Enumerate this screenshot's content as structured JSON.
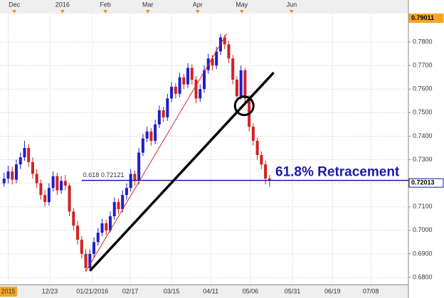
{
  "chart_data": {
    "type": "candlestick",
    "xlim": [
      0,
      100
    ],
    "ylim": [
      0.677,
      0.7918
    ],
    "grid": true,
    "yticks": [
      {
        "value": 0.68,
        "label": "0.6800"
      },
      {
        "value": 0.69,
        "label": "0.6900"
      },
      {
        "value": 0.7,
        "label": "0.7000"
      },
      {
        "value": 0.71,
        "label": "0.7100"
      },
      {
        "value": 0.72,
        "label": "0.7200"
      },
      {
        "value": 0.73,
        "label": "0.7300"
      },
      {
        "value": 0.74,
        "label": "0.7400"
      },
      {
        "value": 0.75,
        "label": "0.7500"
      },
      {
        "value": 0.76,
        "label": "0.7600"
      },
      {
        "value": 0.77,
        "label": "0.7700"
      },
      {
        "value": 0.78,
        "label": "0.7800"
      }
    ],
    "xticks": [
      {
        "value": 2,
        "label": "2015"
      },
      {
        "value": 12.2,
        "label": "12/23"
      },
      {
        "value": 22.6,
        "label": "01/21/2016"
      },
      {
        "value": 31.9,
        "label": "02/17"
      },
      {
        "value": 42,
        "label": "03/15"
      },
      {
        "value": 51.6,
        "label": "04/11"
      },
      {
        "value": 61.3,
        "label": "05/06"
      },
      {
        "value": 71.6,
        "label": "05/31"
      },
      {
        "value": 81.4,
        "label": "06/19"
      },
      {
        "value": 90.8,
        "label": "07/08"
      }
    ],
    "top_xticks": [
      {
        "value": 3.5,
        "label": "Dec"
      },
      {
        "value": 15.3,
        "label": "2016"
      },
      {
        "value": 25.8,
        "label": "Feb"
      },
      {
        "value": 36.2,
        "label": "Mar"
      },
      {
        "value": 48.4,
        "label": "Apr"
      },
      {
        "value": 59.2,
        "label": "May"
      },
      {
        "value": 71.4,
        "label": "Jun"
      }
    ],
    "up_color": "#1f1fc8",
    "down_color": "#d42020",
    "x": [
      1,
      2,
      3,
      4,
      5,
      6,
      7,
      8,
      9,
      10,
      11,
      12,
      13,
      14,
      15,
      16,
      17,
      18,
      19,
      20,
      21,
      22,
      23,
      24,
      25,
      26,
      27,
      28,
      29,
      30,
      31,
      32,
      33,
      34,
      35,
      36,
      37,
      38,
      39,
      40,
      41,
      42,
      43,
      44,
      45,
      46,
      47,
      48,
      49,
      50,
      51,
      52,
      53,
      54,
      55,
      56,
      57,
      58,
      59,
      60,
      61,
      62,
      63,
      64,
      65,
      66
    ],
    "open": [
      0.72,
      0.722,
      0.725,
      0.7215,
      0.728,
      0.731,
      0.735,
      0.729,
      0.724,
      0.72,
      0.715,
      0.712,
      0.718,
      0.723,
      0.717,
      0.721,
      0.719,
      0.708,
      0.702,
      0.696,
      0.69,
      0.684,
      0.69,
      0.695,
      0.699,
      0.703,
      0.7,
      0.706,
      0.712,
      0.709,
      0.715,
      0.718,
      0.724,
      0.721,
      0.733,
      0.739,
      0.742,
      0.738,
      0.745,
      0.751,
      0.748,
      0.756,
      0.761,
      0.758,
      0.765,
      0.762,
      0.769,
      0.764,
      0.756,
      0.76,
      0.768,
      0.773,
      0.77,
      0.776,
      0.782,
      0.779,
      0.773,
      0.764,
      0.757,
      0.768,
      0.756,
      0.744,
      0.738,
      0.732,
      0.728,
      0.722
    ],
    "high": [
      0.7245,
      0.7275,
      0.727,
      0.73,
      0.733,
      0.738,
      0.7365,
      0.731,
      0.726,
      0.7215,
      0.717,
      0.72,
      0.725,
      0.7245,
      0.723,
      0.7235,
      0.72,
      0.7095,
      0.704,
      0.6975,
      0.692,
      0.692,
      0.697,
      0.701,
      0.705,
      0.7045,
      0.708,
      0.714,
      0.7135,
      0.717,
      0.72,
      0.726,
      0.7255,
      0.735,
      0.741,
      0.744,
      0.7435,
      0.747,
      0.753,
      0.7525,
      0.758,
      0.763,
      0.7625,
      0.767,
      0.7665,
      0.771,
      0.7705,
      0.7655,
      0.762,
      0.77,
      0.775,
      0.7745,
      0.778,
      0.7835,
      0.783,
      0.7805,
      0.7745,
      0.7655,
      0.77,
      0.769,
      0.7575,
      0.7455,
      0.7395,
      0.7335,
      0.7295,
      0.7235
    ],
    "low": [
      0.7185,
      0.72,
      0.7195,
      0.72,
      0.726,
      0.7295,
      0.727,
      0.722,
      0.718,
      0.713,
      0.71,
      0.7105,
      0.7165,
      0.715,
      0.7155,
      0.717,
      0.706,
      0.7,
      0.694,
      0.688,
      0.6825,
      0.683,
      0.6885,
      0.6935,
      0.6975,
      0.698,
      0.699,
      0.7045,
      0.707,
      0.7075,
      0.713,
      0.7165,
      0.719,
      0.7195,
      0.7315,
      0.7375,
      0.736,
      0.7365,
      0.7435,
      0.746,
      0.7465,
      0.7545,
      0.756,
      0.7565,
      0.76,
      0.7605,
      0.762,
      0.754,
      0.7545,
      0.7585,
      0.7665,
      0.768,
      0.7685,
      0.7745,
      0.777,
      0.771,
      0.762,
      0.755,
      0.7555,
      0.754,
      0.742,
      0.736,
      0.73,
      0.726,
      0.7195,
      0.7185
    ],
    "close": [
      0.722,
      0.725,
      0.7215,
      0.728,
      0.731,
      0.735,
      0.729,
      0.724,
      0.72,
      0.715,
      0.712,
      0.718,
      0.723,
      0.717,
      0.721,
      0.719,
      0.708,
      0.702,
      0.696,
      0.69,
      0.684,
      0.69,
      0.695,
      0.699,
      0.703,
      0.7,
      0.706,
      0.712,
      0.709,
      0.715,
      0.718,
      0.724,
      0.721,
      0.733,
      0.739,
      0.742,
      0.738,
      0.745,
      0.751,
      0.748,
      0.756,
      0.761,
      0.758,
      0.765,
      0.762,
      0.769,
      0.764,
      0.756,
      0.76,
      0.768,
      0.773,
      0.77,
      0.776,
      0.782,
      0.779,
      0.773,
      0.764,
      0.757,
      0.768,
      0.756,
      0.744,
      0.738,
      0.732,
      0.728,
      0.722,
      0.721
    ],
    "fib_move": {
      "x": [
        21,
        55.5
      ],
      "y": [
        0.6825,
        0.7835
      ],
      "color": "#e02020"
    },
    "trendline": {
      "x": [
        22,
        67
      ],
      "y": [
        0.6828,
        0.767
      ],
      "color": "#000000"
    },
    "cross_point": {
      "x": 59.8,
      "y": 0.7529
    },
    "retracement": {
      "value": 0.72121,
      "label": "0.618 0.72121",
      "start_x": 20,
      "color": "#1a1aa8"
    },
    "annotation": "61.8% Retracement",
    "price_markers": [
      0.79011,
      0.72013
    ]
  }
}
